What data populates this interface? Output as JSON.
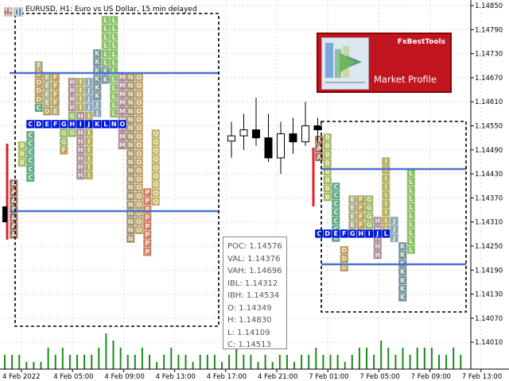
{
  "title": {
    "symbol_line": "EURUSD, H1: Euro vs US Dollar, 15 min delayed"
  },
  "logo": {
    "brand": "FxBestTools",
    "name": "Market Profile"
  },
  "price_axis": {
    "labels": [
      "1.14850",
      "1.14790",
      "1.14730",
      "1.14670",
      "1.14610",
      "1.14550",
      "1.14490",
      "1.14430",
      "1.14370",
      "1.14310",
      "1.14250",
      "1.14190",
      "1.14130",
      "1.14070",
      "1.14010"
    ]
  },
  "time_axis": {
    "labels": [
      "4 Feb 2022",
      "4 Feb 05:00",
      "4 Feb 09:00",
      "4 Feb 13:00",
      "4 Feb 17:00",
      "4 Feb 21:00",
      "7 Feb 01:00",
      "7 Feb 05:00",
      "7 Feb 09:00",
      "7 Feb 13:00"
    ]
  },
  "stats": {
    "poc": "POC: 1.14576",
    "val": "VAL: 1.14376",
    "vah": "VAH: 1.14696",
    "ibl": "IBL: 1.14312",
    "ibh": "IBH: 1.14534",
    "open": "O: 1.14349",
    "high": "H: 1.14830",
    "low": "L: 1.14109",
    "close": "C: 1.14513"
  },
  "colors": {
    "poc": "#0018d8",
    "value_area_line": "#4a73d0",
    "box_border": "#000000",
    "volume": "#1a8a1a",
    "grid": "#d8d8d8",
    "initial_balance": "#e0202a"
  },
  "letter_colors": {
    "A": "#a0706a",
    "B": "#a4b86a",
    "C": "#5fa88c",
    "D": "#b89660",
    "E": "#a8a888",
    "F": "#b8a060",
    "G": "#96b86a",
    "H": "#a88aa0",
    "I": "#b8b06a",
    "J": "#8aa8c0",
    "K": "#7090a0",
    "L": "#8cc070",
    "M": "#ad7fa5",
    "N": "#a09070",
    "O": "#bba070",
    "P": "#d07e6c",
    "Q": "#bcb06c"
  },
  "profile1_columns": [
    {
      "rows": [
        "A",
        "A",
        "A",
        "A",
        "A",
        "A",
        "A"
      ]
    },
    {
      "rows": [
        "B",
        "B",
        "B"
      ]
    },
    {
      "rows": [
        "C",
        "C",
        "C",
        "C",
        "C",
        "C"
      ]
    },
    {
      "rows": [
        "E",
        "D",
        "D",
        "D",
        "D",
        "C"
      ]
    },
    {
      "rows": [
        "E",
        "E",
        "E",
        "E",
        "D"
      ]
    },
    {
      "rows": [
        "F",
        "F",
        "F",
        "F",
        "E"
      ]
    },
    {
      "rows": [
        "G",
        "G",
        "G",
        "F"
      ]
    },
    {
      "rows": [
        "H",
        "H",
        "H",
        "H",
        "G",
        "G",
        "G"
      ]
    },
    {
      "rows": [
        "I",
        "I",
        "I",
        "I",
        "H",
        "H",
        "H",
        "H",
        "H",
        "H",
        "H",
        "H"
      ]
    },
    {
      "rows": [
        "J",
        "J",
        "J",
        "J",
        "I",
        "I",
        "I",
        "I",
        "I",
        "I",
        "I",
        "I"
      ]
    },
    {
      "rows": [
        "K",
        "K",
        "K",
        "K",
        "K",
        "K",
        "J",
        "J"
      ]
    },
    {
      "rows": [
        "L",
        "L",
        "L",
        "L",
        "L",
        "L",
        "K",
        "K"
      ]
    },
    {
      "rows": [
        "L",
        "L",
        "L",
        "L",
        "L",
        "L",
        "L",
        "L",
        "L",
        "L",
        "L",
        "L"
      ]
    },
    {
      "rows": [
        "M",
        "M",
        "M",
        "M",
        "M",
        "M",
        "M",
        "M",
        "M"
      ]
    },
    {
      "rows": [
        "N",
        "N",
        "N",
        "N",
        "N",
        "N",
        "N",
        "N",
        "N",
        "N",
        "N",
        "N",
        "N",
        "N",
        "N",
        "N",
        "N",
        "N",
        "N",
        "N"
      ]
    },
    {
      "rows": [
        "O",
        "O",
        "O",
        "O",
        "O",
        "O",
        "O",
        "O",
        "O",
        "O",
        "O",
        "O",
        "O",
        "O",
        "O",
        "O",
        "O",
        "O",
        "O"
      ]
    },
    {
      "rows": [
        "P",
        "P",
        "P",
        "P",
        "P",
        "P",
        "P",
        "P"
      ]
    },
    {
      "rows": [
        "Q",
        "Q",
        "Q",
        "Q",
        "Q",
        "Q",
        "Q",
        "Q",
        "Q"
      ]
    }
  ],
  "profile2_columns": [
    {
      "rows": [
        "A",
        "A",
        "A"
      ]
    },
    {
      "rows": [
        "B",
        "B",
        "B",
        "B",
        "B",
        "B",
        "B",
        "B"
      ]
    },
    {
      "rows": [
        "C",
        "C",
        "C",
        "C",
        "C",
        "C",
        "C"
      ]
    },
    {
      "rows": [
        "D",
        "D",
        "D"
      ]
    },
    {
      "rows": [
        "E",
        "E",
        "E",
        "E",
        "E"
      ]
    },
    {
      "rows": [
        "F",
        "F",
        "F",
        "F"
      ]
    },
    {
      "rows": [
        "G",
        "G",
        "G",
        "G"
      ]
    },
    {
      "rows": [
        "H",
        "H",
        "H",
        "H",
        "H"
      ]
    },
    {
      "rows": [
        "I",
        "I",
        "I",
        "I",
        "I",
        "I",
        "I",
        "I",
        "I"
      ]
    },
    {
      "rows": [
        "J",
        "J",
        "J"
      ]
    },
    {
      "rows": [
        "K",
        "K",
        "K",
        "K",
        "K",
        "K",
        "K"
      ]
    },
    {
      "rows": [
        "L",
        "L",
        "L",
        "L",
        "L",
        "L",
        "L",
        "L",
        "L",
        "L"
      ]
    }
  ],
  "poc_row": [
    "C",
    "D",
    "E",
    "F",
    "G",
    "H",
    "I",
    "J",
    "K",
    "L",
    "N",
    "O"
  ],
  "poc_row2": [
    "C",
    "D",
    "E",
    "F",
    "G",
    "H",
    "I",
    "J",
    "L"
  ],
  "candles": [
    {
      "o": 1.14512,
      "h": 1.1456,
      "l": 1.1447,
      "c": 1.14525
    },
    {
      "o": 1.14525,
      "h": 1.1458,
      "l": 1.1449,
      "c": 1.1454
    },
    {
      "o": 1.1454,
      "h": 1.1462,
      "l": 1.145,
      "c": 1.1452
    },
    {
      "o": 1.1452,
      "h": 1.1458,
      "l": 1.1446,
      "c": 1.1447
    },
    {
      "o": 1.1447,
      "h": 1.1456,
      "l": 1.1443,
      "c": 1.1453
    },
    {
      "o": 1.1453,
      "h": 1.1457,
      "l": 1.1448,
      "c": 1.1451
    },
    {
      "o": 1.1451,
      "h": 1.1461,
      "l": 1.145,
      "c": 1.1455
    },
    {
      "o": 1.1455,
      "h": 1.1457,
      "l": 1.1451,
      "c": 1.1454
    }
  ],
  "volume_bars": [
    2,
    2,
    2,
    1,
    1,
    1,
    3,
    2,
    3,
    2,
    2,
    2,
    2,
    3,
    5,
    4,
    3,
    2,
    2,
    3,
    2,
    1,
    2,
    3,
    2,
    2,
    1,
    2,
    2,
    2,
    1,
    2,
    3,
    2,
    2,
    1,
    2,
    1,
    2,
    2,
    1,
    2,
    2,
    3,
    2,
    2,
    2,
    1,
    2,
    3,
    3,
    2,
    4,
    3,
    2,
    3,
    2,
    3,
    3,
    3,
    2,
    2,
    3,
    2
  ]
}
